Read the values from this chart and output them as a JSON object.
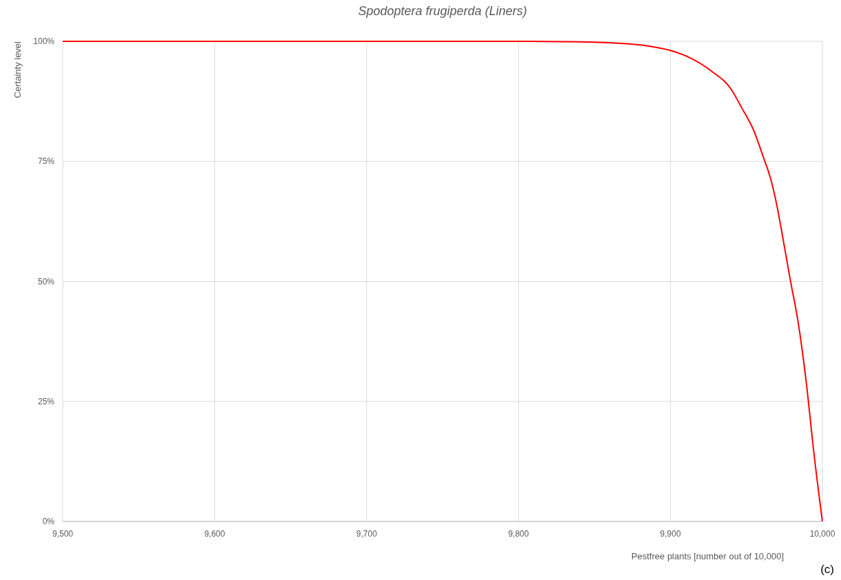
{
  "chart_data": {
    "type": "line",
    "title": "Spodoptera frugiperda (Liners)",
    "xlabel": "Pestfree plants [number out of 10,000]",
    "ylabel": "Certainty level",
    "annotations": [
      "(c)"
    ],
    "x": [
      9500,
      9600,
      9700,
      9800,
      9840,
      9859,
      9884,
      9900,
      9914,
      9927,
      9940,
      9947,
      9955,
      9961,
      9966,
      9970,
      9973,
      9979,
      9984,
      9990,
      9994,
      10000
    ],
    "series": [
      {
        "color": "#ff0000",
        "values": [
          100,
          100,
          100,
          100,
          99.9,
          99.7,
          99.1,
          98.1,
          96.4,
          93.8,
          90.0,
          86.1,
          81.3,
          76.0,
          71.3,
          65.9,
          60.8,
          50.1,
          41.6,
          27.3,
          15.4,
          0
        ]
      }
    ],
    "xlim": [
      9500,
      10000
    ],
    "xticks": [
      {
        "value": 9500,
        "label": "9,500"
      },
      {
        "value": 9600,
        "label": "9,600"
      },
      {
        "value": 9700,
        "label": "9,700"
      },
      {
        "value": 9800,
        "label": "9,800"
      },
      {
        "value": 9900,
        "label": "9,900"
      },
      {
        "value": 10000,
        "label": "10,000"
      }
    ],
    "ylim": [
      0,
      100
    ],
    "yticks": [
      {
        "value": 0,
        "label": "0%"
      },
      {
        "value": 25,
        "label": "25%"
      },
      {
        "value": 50,
        "label": "50%"
      },
      {
        "value": 75,
        "label": "75%"
      },
      {
        "value": 100,
        "label": "100%"
      }
    ],
    "grid": true,
    "marker": "none",
    "line_style": "solid"
  }
}
